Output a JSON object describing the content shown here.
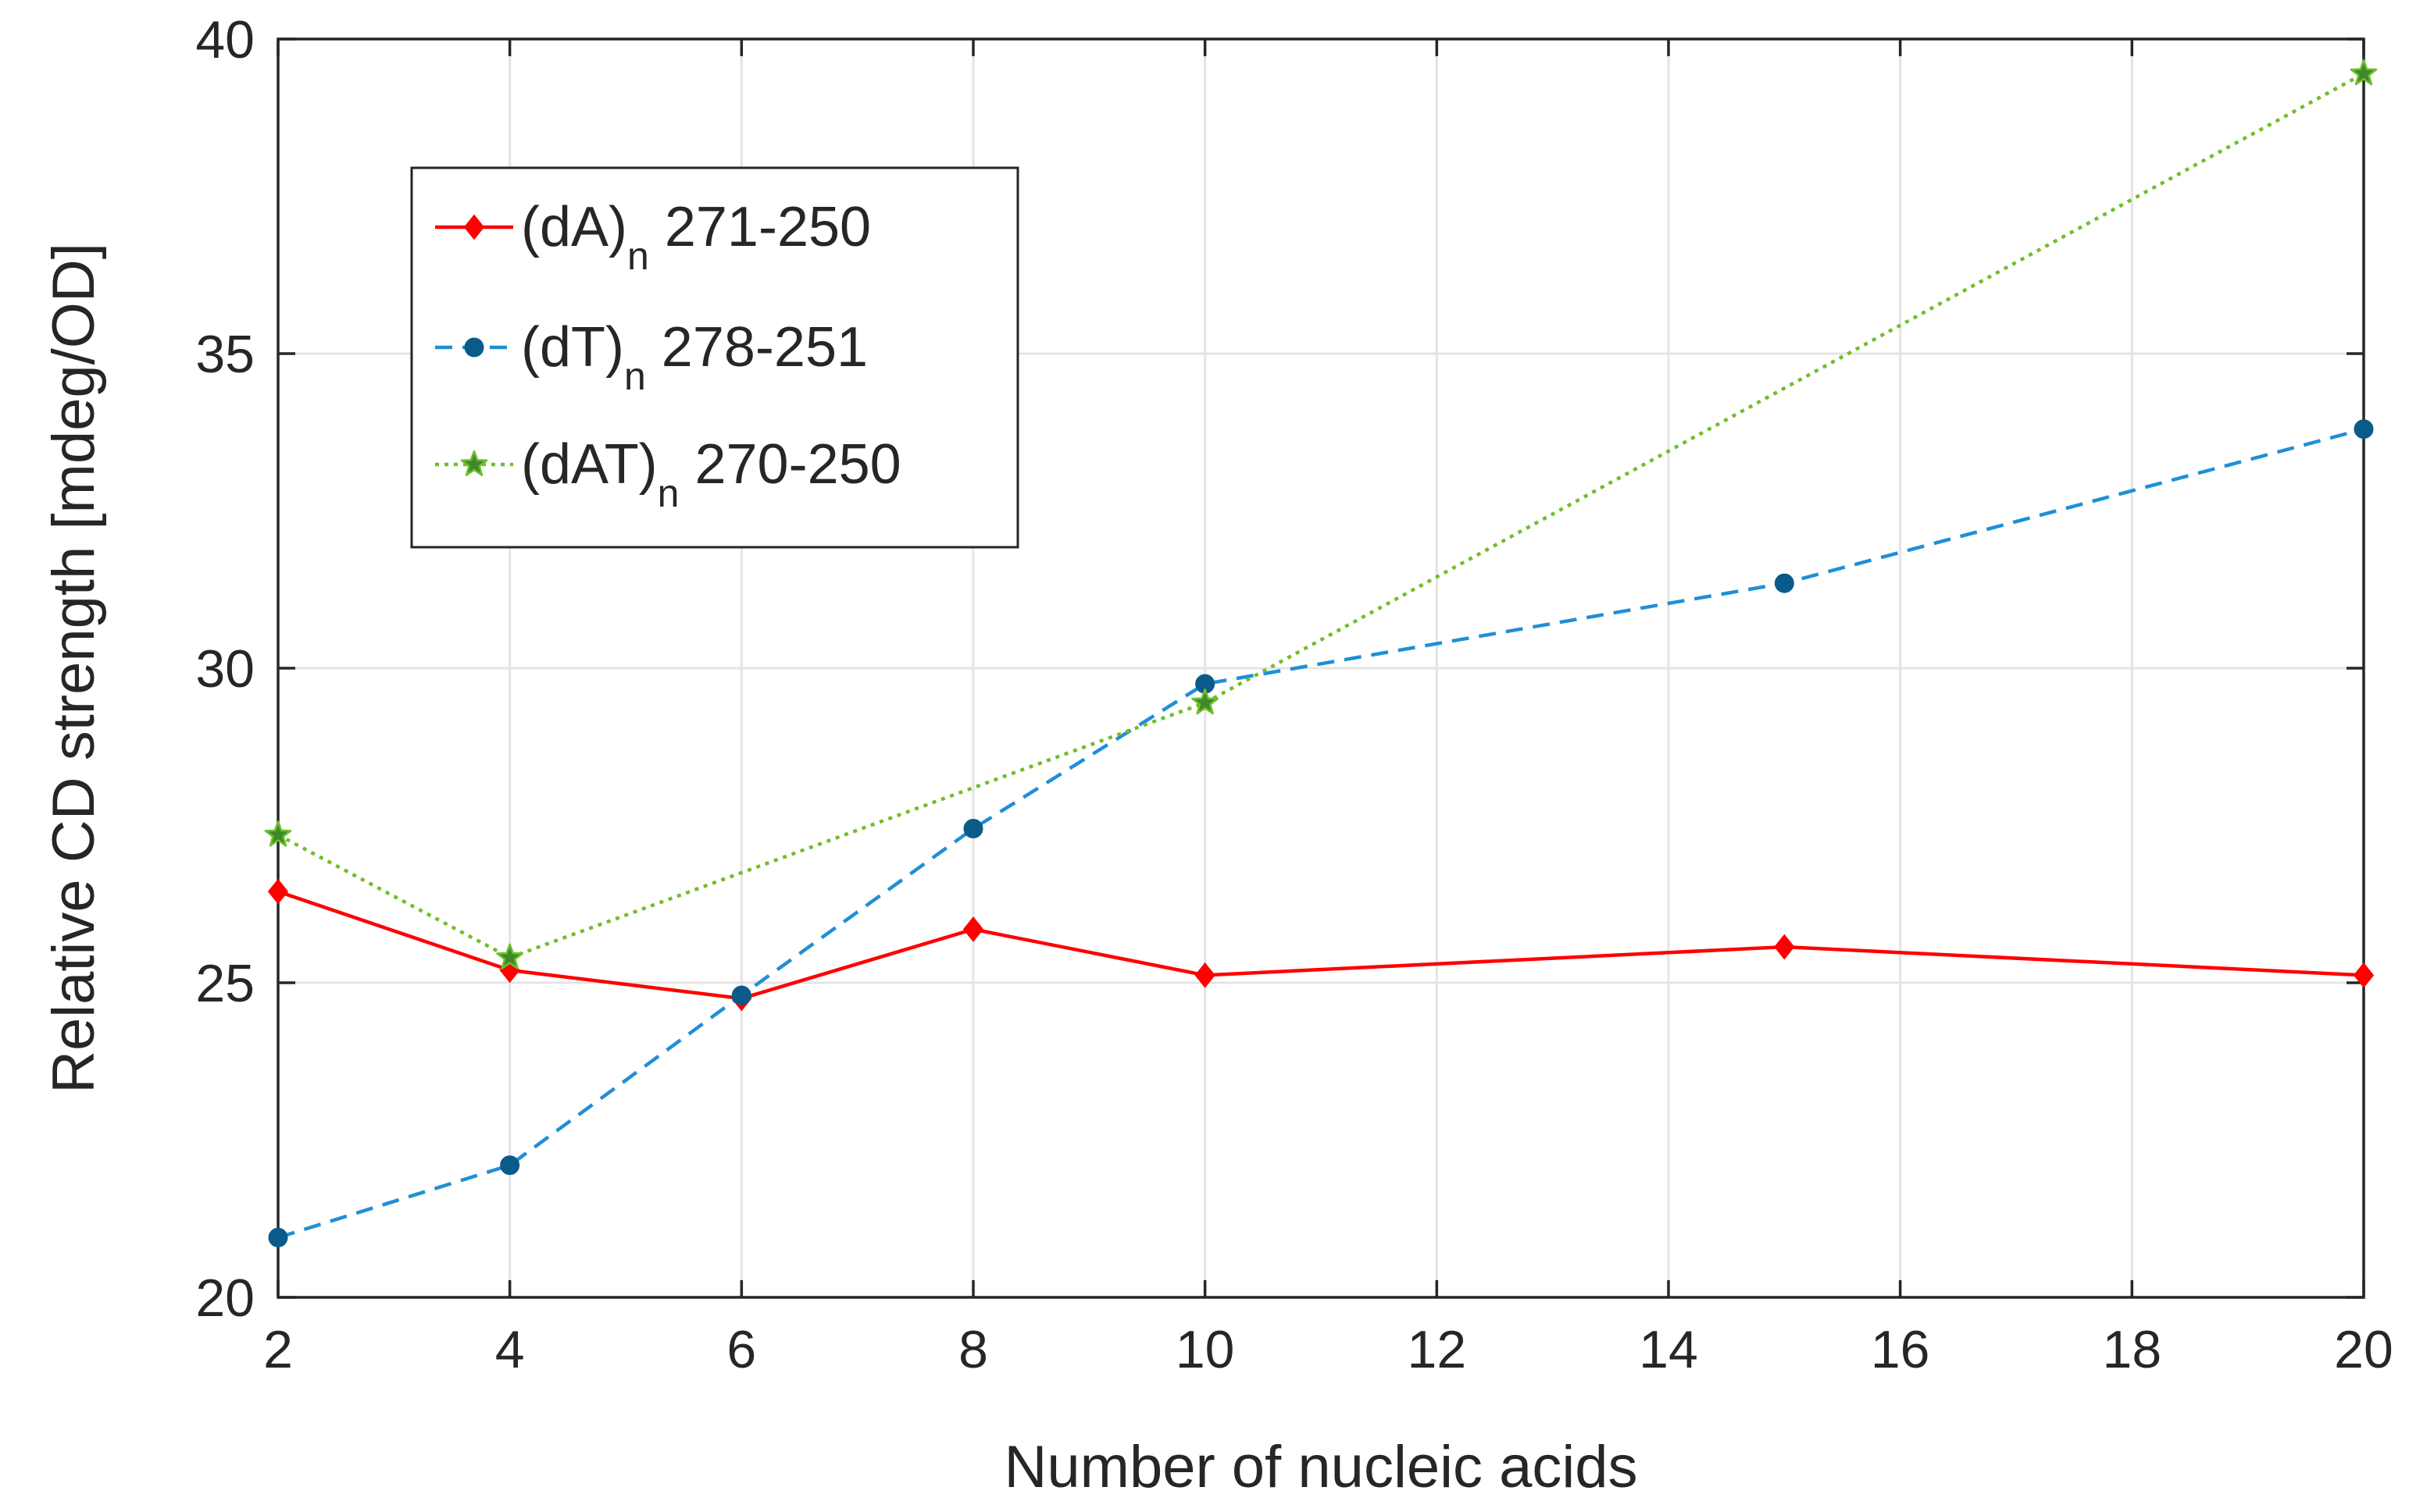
{
  "chart_data": {
    "type": "line",
    "title": "",
    "xlabel": "Number of nucleic acids",
    "ylabel": "Relative CD strength [mdeg/OD]",
    "xlim": [
      2,
      20
    ],
    "ylim": [
      20,
      40
    ],
    "xticks": [
      2,
      4,
      6,
      8,
      10,
      12,
      14,
      16,
      18,
      20
    ],
    "yticks": [
      20,
      25,
      30,
      35,
      40
    ],
    "grid": true,
    "legend_position": "top-left",
    "series": [
      {
        "name": "(dA)n 271-250",
        "label_main": "(dA)",
        "label_sub": "n",
        "label_rest": " 271-250",
        "color": "#ff0000",
        "line_style": "solid",
        "marker": "diamond",
        "x": [
          2,
          4,
          6,
          8,
          10,
          15,
          20
        ],
        "y": [
          26.45,
          25.2,
          24.75,
          25.85,
          25.12,
          25.57,
          25.12
        ]
      },
      {
        "name": "(dT)n 278-251",
        "label_main": "(dT)",
        "label_sub": "n",
        "label_rest": " 278-251",
        "color": "#1f8fd6",
        "marker_color": "#0a5b8a",
        "line_style": "dashed",
        "marker": "circle",
        "x": [
          2,
          4,
          6,
          8,
          10,
          15,
          20
        ],
        "y": [
          20.95,
          22.1,
          24.8,
          27.45,
          29.75,
          31.35,
          33.8
        ]
      },
      {
        "name": "(dAT)n 270-250",
        "label_main": "(dAT)",
        "label_sub": "n",
        "label_rest": " 270-250",
        "color": "#6fbf2a",
        "marker_color": "#5a9e22",
        "line_style": "dotted",
        "marker": "star",
        "x": [
          2,
          4,
          10,
          20
        ],
        "y": [
          27.35,
          25.4,
          29.45,
          39.45
        ]
      }
    ]
  }
}
